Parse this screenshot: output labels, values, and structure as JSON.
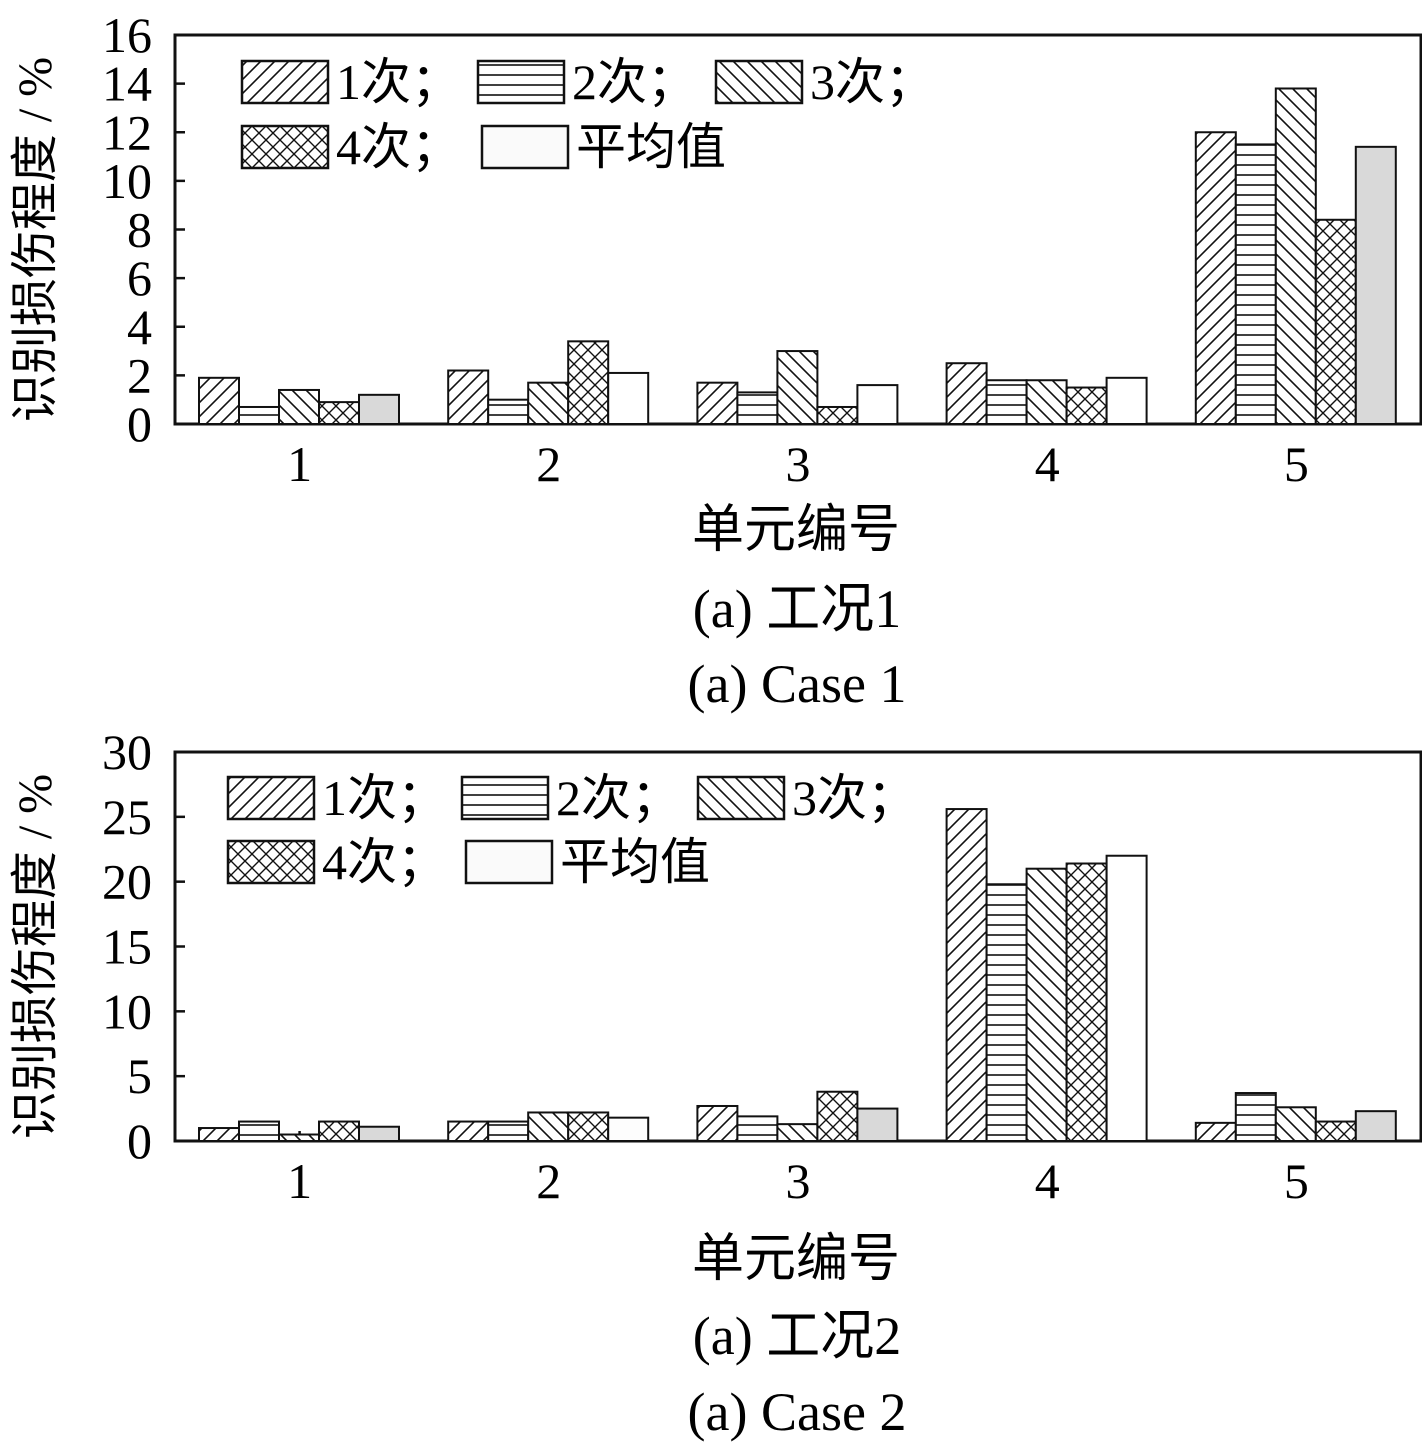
{
  "chart_data": [
    {
      "type": "bar",
      "categories": [
        "1",
        "2",
        "3",
        "4",
        "5"
      ],
      "xlabel": "单元编号",
      "ylabel": "识别损伤程度 / %",
      "ylim": [
        0,
        16
      ],
      "yticks": [
        "0",
        "2",
        "4",
        "6",
        "8",
        "10",
        "12",
        "14",
        "16"
      ],
      "grid": false,
      "legend_position": "top-left",
      "series": [
        {
          "name": "1次；",
          "pattern": "diagonal-forward",
          "values": [
            1.9,
            2.2,
            1.7,
            2.5,
            12.0
          ]
        },
        {
          "name": "2次；",
          "pattern": "horizontal",
          "values": [
            0.7,
            1.0,
            1.3,
            1.8,
            11.5
          ]
        },
        {
          "name": "3次；",
          "pattern": "diagonal-back",
          "values": [
            1.4,
            1.7,
            3.0,
            1.8,
            13.8
          ]
        },
        {
          "name": "4次；",
          "pattern": "crosshatch",
          "values": [
            0.9,
            3.4,
            0.7,
            1.5,
            8.4
          ]
        },
        {
          "name": "平均值",
          "pattern": "solid",
          "values": [
            1.2,
            2.1,
            1.6,
            1.9,
            11.4
          ]
        }
      ],
      "bar_colors": [
        [
          "#ffffff",
          "#ffffff",
          "#ffffff",
          "#ffffff",
          "#d9d9d9"
        ],
        [
          "#ffffff",
          "#ffffff",
          "#ffffff",
          "#ffffff",
          "#ffffff"
        ],
        [
          "#ffffff",
          "#ffffff",
          "#ffffff",
          "#ffffff",
          "#ffffff"
        ],
        [
          "#ffffff",
          "#ffffff",
          "#ffffff",
          "#ffffff",
          "#ffffff"
        ],
        [
          "#ffffff",
          "#fdfdfd",
          "#d9d9d9",
          "#ffffff",
          "#d9d9d9"
        ]
      ],
      "caption_cn": "(a)  工况1",
      "caption_en": "(a)  Case 1"
    },
    {
      "type": "bar",
      "categories": [
        "1",
        "2",
        "3",
        "4",
        "5"
      ],
      "xlabel": "单元编号",
      "ylabel": "识别损伤程度 / %",
      "ylim": [
        0,
        30
      ],
      "yticks": [
        "0",
        "5",
        "10",
        "15",
        "20",
        "25",
        "30"
      ],
      "grid": false,
      "legend_position": "top-left",
      "series": [
        {
          "name": "1次；",
          "pattern": "diagonal-forward",
          "values": [
            1.0,
            1.5,
            2.7,
            25.6,
            1.4
          ]
        },
        {
          "name": "2次；",
          "pattern": "horizontal",
          "values": [
            1.5,
            1.5,
            1.9,
            19.8,
            3.7
          ]
        },
        {
          "name": "3次；",
          "pattern": "diagonal-back",
          "values": [
            0.5,
            2.2,
            1.3,
            21.0,
            2.6
          ]
        },
        {
          "name": "4次；",
          "pattern": "crosshatch",
          "values": [
            1.5,
            2.2,
            3.8,
            21.4,
            1.5
          ]
        },
        {
          "name": "平均值",
          "pattern": "solid",
          "values": [
            1.1,
            1.8,
            2.5,
            22.0,
            2.3
          ]
        }
      ],
      "bar_colors": [
        [
          "#ffffff",
          "#ffffff",
          "#ffffff",
          "#ffffff",
          "#d9d9d9"
        ],
        [
          "#ffffff",
          "#ffffff",
          "#ffffff",
          "#ffffff",
          "#fdfdfd"
        ],
        [
          "#ffffff",
          "#ffffff",
          "#ffffff",
          "#ffffff",
          "#d9d9d9"
        ],
        [
          "#ffffff",
          "#ffffff",
          "#ffffff",
          "#ffffff",
          "#ffffff"
        ],
        [
          "#ffffff",
          "#ffffff",
          "#ffffff",
          "#ffffff",
          "#d9d9d9"
        ]
      ],
      "caption_cn": "(a)  工况2",
      "caption_en": "(a)  Case 2"
    }
  ]
}
